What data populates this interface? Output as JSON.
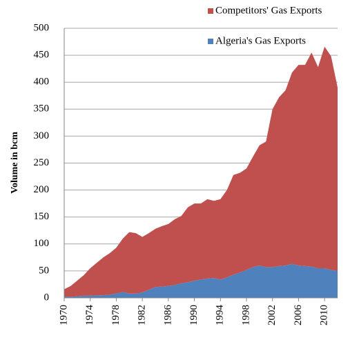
{
  "chart_data": {
    "type": "area",
    "stacked": true,
    "y_label": "Volume in bcm",
    "x": [
      1970,
      1971,
      1972,
      1973,
      1974,
      1975,
      1976,
      1977,
      1978,
      1979,
      1980,
      1981,
      1982,
      1983,
      1984,
      1985,
      1986,
      1987,
      1988,
      1989,
      1990,
      1991,
      1992,
      1993,
      1994,
      1995,
      1996,
      1997,
      1998,
      1999,
      2000,
      2001,
      2002,
      2003,
      2004,
      2005,
      2006,
      2007,
      2008,
      2009,
      2010,
      2011,
      2012
    ],
    "xlim": [
      1970,
      2012
    ],
    "xticks": [
      1970,
      1974,
      1978,
      1982,
      1986,
      1990,
      1994,
      1998,
      2002,
      2006,
      2010
    ],
    "ylim": [
      0,
      500
    ],
    "yticks": [
      0,
      50,
      100,
      150,
      200,
      250,
      300,
      350,
      400,
      450,
      500
    ],
    "grid": true,
    "legend": "top-right",
    "series": [
      {
        "name": "Algeria's Gas Exports",
        "color": "#4f81bd",
        "values": [
          2,
          2,
          3,
          4,
          4,
          5,
          5,
          6,
          8,
          11,
          8,
          8,
          10,
          15,
          20,
          21,
          22,
          24,
          27,
          29,
          32,
          34,
          36,
          37,
          34,
          38,
          43,
          47,
          52,
          57,
          60,
          57,
          57,
          59,
          60,
          63,
          60,
          59,
          58,
          55,
          55,
          52,
          50
        ]
      },
      {
        "name": "Competitors' Gas Exports",
        "color": "#c0504d",
        "values": [
          14,
          20,
          29,
          38,
          51,
          60,
          70,
          77,
          85,
          99,
          114,
          112,
          103,
          105,
          108,
          112,
          115,
          122,
          125,
          139,
          143,
          141,
          147,
          143,
          149,
          162,
          185,
          185,
          188,
          205,
          223,
          233,
          293,
          313,
          325,
          355,
          372,
          373,
          397,
          373,
          411,
          396,
          340
        ]
      }
    ]
  }
}
